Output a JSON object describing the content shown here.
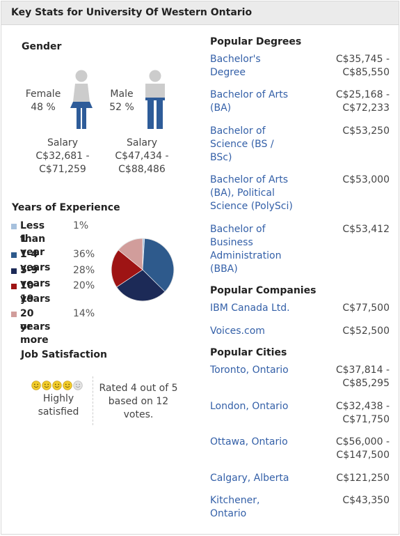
{
  "header": {
    "title": "Key Stats for University Of Western Ontario"
  },
  "gender": {
    "title": "Gender",
    "female": {
      "label": "Female",
      "percent": "48 %",
      "salary_label": "Salary",
      "salary_range_1": "C$32,681 -",
      "salary_range_2": "C$71,259"
    },
    "male": {
      "label": "Male",
      "percent": "52 %",
      "salary_label": "Salary",
      "salary_range_1": "C$47,434 -",
      "salary_range_2": "C$88,486"
    },
    "colors": {
      "female_top": "#cccccc",
      "female_bottom": "#2e5c99",
      "male_top": "#cccccc",
      "male_bottom": "#2e5c99"
    }
  },
  "experience": {
    "title": "Years of Experience",
    "items": [
      {
        "label_1": "Less than",
        "label_2": "1 year",
        "pct": "1%",
        "color": "#a7c1dd"
      },
      {
        "label_1": "1-4 years",
        "label_2": "",
        "pct": "36%",
        "color": "#2e5a8c"
      },
      {
        "label_1": "5-9 years",
        "label_2": "",
        "pct": "28%",
        "color": "#1c2a57"
      },
      {
        "label_1": "10-19",
        "label_2": "years",
        "pct": "20%",
        "color": "#9e1414"
      },
      {
        "label_1": "20 years",
        "label_2": "or more",
        "pct": "14%",
        "color": "#d19d9b"
      }
    ]
  },
  "chart_data": {
    "type": "pie",
    "categories": [
      "Less than 1 year",
      "1-4 years",
      "5-9 years",
      "10-19 years",
      "20 years or more"
    ],
    "values": [
      1,
      36,
      28,
      20,
      14
    ],
    "colors": [
      "#a7c1dd",
      "#2e5a8c",
      "#1c2a57",
      "#9e1414",
      "#d19d9b"
    ],
    "title": "Years of Experience"
  },
  "satisfaction": {
    "title": "Job Satisfaction",
    "rating": 4,
    "max_rating": 5,
    "label_1": "Highly",
    "label_2": "satisfied",
    "rated_1": "Rated 4 out of 5",
    "rated_2": "based on 12",
    "rated_3": "votes.",
    "star_color": "#f2cc2a",
    "empty_color": "#e3e3e3"
  },
  "degrees": {
    "title": "Popular Degrees",
    "items": [
      {
        "name_lines": [
          "Bachelor's",
          "Degree"
        ],
        "range_lines": [
          "C$35,745 -",
          "C$85,550"
        ]
      },
      {
        "name_lines": [
          "Bachelor of Arts",
          "(BA)"
        ],
        "range_lines": [
          "C$25,168 -",
          "C$72,233"
        ]
      },
      {
        "name_lines": [
          "Bachelor of",
          "Science (BS /",
          "BSc)"
        ],
        "range_lines": [
          "C$53,250"
        ]
      },
      {
        "name_lines": [
          "Bachelor of Arts",
          "(BA), Political",
          "Science (PolySci)"
        ],
        "range_lines": [
          "C$53,000"
        ]
      },
      {
        "name_lines": [
          "Bachelor of",
          "Business",
          "Administration",
          "(BBA)"
        ],
        "range_lines": [
          "C$53,412"
        ]
      }
    ]
  },
  "companies": {
    "title": "Popular Companies",
    "items": [
      {
        "name_lines": [
          "IBM Canada Ltd."
        ],
        "range_lines": [
          "C$77,500"
        ]
      },
      {
        "name_lines": [
          "Voices.com"
        ],
        "range_lines": [
          "C$52,500"
        ]
      }
    ]
  },
  "cities": {
    "title": "Popular Cities",
    "items": [
      {
        "name_lines": [
          "Toronto, Ontario"
        ],
        "range_lines": [
          "C$37,814 -",
          "C$85,295"
        ]
      },
      {
        "name_lines": [
          "London, Ontario"
        ],
        "range_lines": [
          "C$32,438 -",
          "C$71,750"
        ]
      },
      {
        "name_lines": [
          "Ottawa, Ontario"
        ],
        "range_lines": [
          "C$56,000 -",
          "C$147,500"
        ]
      },
      {
        "name_lines": [
          "Calgary, Alberta"
        ],
        "range_lines": [
          "C$121,250"
        ]
      },
      {
        "name_lines": [
          "Kitchener,",
          "Ontario"
        ],
        "range_lines": [
          "C$43,350"
        ]
      }
    ]
  }
}
